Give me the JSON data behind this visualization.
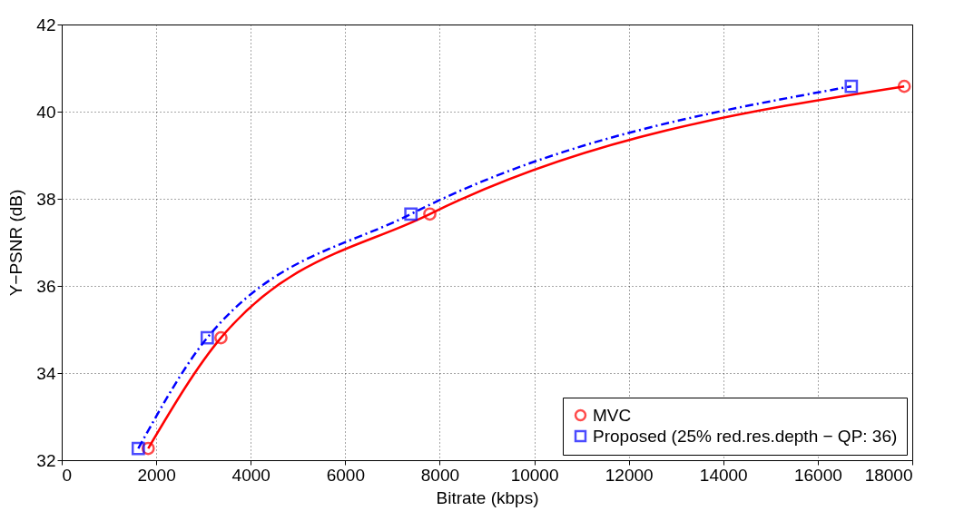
{
  "chart_data": {
    "type": "line",
    "xlabel": "Bitrate (kbps)",
    "ylabel": "Y−PSNR (dB)",
    "xlim": [
      0,
      18000
    ],
    "xticks": [
      0,
      2000,
      4000,
      6000,
      8000,
      10000,
      12000,
      14000,
      16000,
      18000
    ],
    "ylim": [
      32,
      42
    ],
    "yticks": [
      32,
      34,
      36,
      38,
      40,
      42
    ],
    "grid": true,
    "legend": "bottom right",
    "series": [
      {
        "name": "MVC",
        "color": "#ff0000",
        "marker": "circle",
        "line_style": "solid",
        "x": [
          1830,
          3370,
          7790,
          17830
        ],
        "values": [
          32.27,
          34.81,
          37.65,
          40.58
        ]
      },
      {
        "name": "Proposed (25% red.res.depth − QP: 36)",
        "color": "#0000ff",
        "marker": "square",
        "line_style": "dashed",
        "x": [
          1620,
          3080,
          7390,
          16710
        ],
        "values": [
          32.27,
          34.81,
          37.65,
          40.58
        ]
      }
    ]
  }
}
